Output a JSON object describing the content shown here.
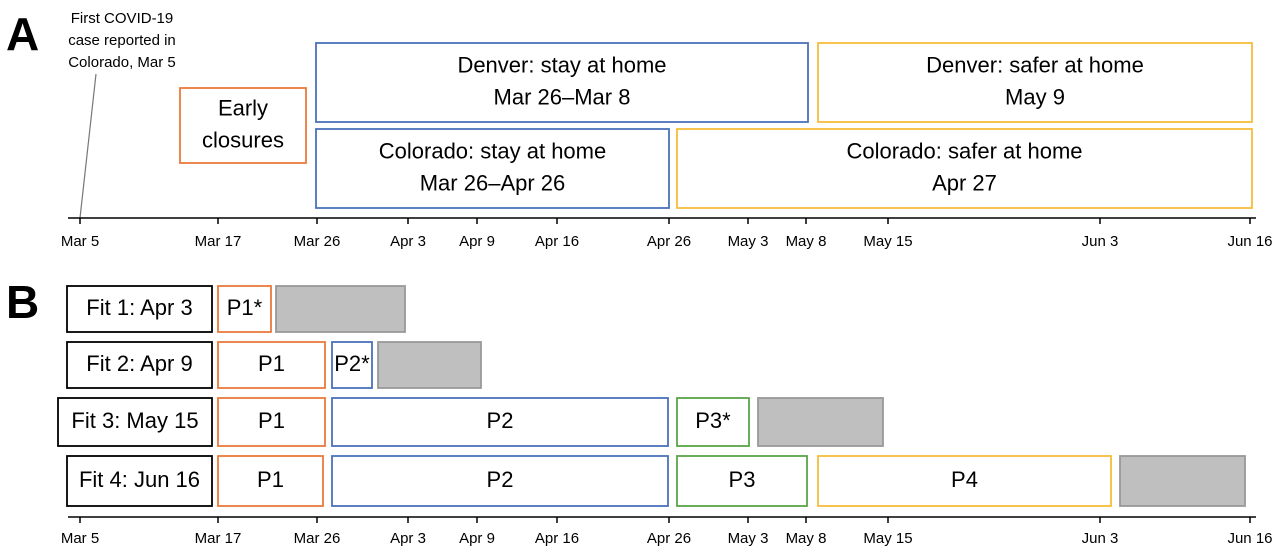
{
  "panel_a": {
    "label": "A",
    "annotation": [
      "First COVID-19",
      "case reported in",
      "Colorado, Mar 5"
    ],
    "boxes": [
      {
        "lines": [
          "Early",
          "closures"
        ]
      },
      {
        "lines": [
          "Denver: stay at home",
          "Mar 26–Mar 8"
        ]
      },
      {
        "lines": [
          "Denver: safer at home",
          "May 9"
        ]
      },
      {
        "lines": [
          "Colorado: stay at home",
          "Mar 26–Apr 26"
        ]
      },
      {
        "lines": [
          "Colorado: safer at home",
          "Apr 27"
        ]
      }
    ],
    "axis_ticks": [
      "Mar 5",
      "Mar 17",
      "Mar 26",
      "Apr 3",
      "Apr 9",
      "Apr 16",
      "Apr 26",
      "May 3",
      "May 8",
      "May 15",
      "Jun 3",
      "Jun 16"
    ]
  },
  "panel_b": {
    "label": "B",
    "rows": [
      {
        "label": "Fit 1: Apr 3",
        "periods": [
          "P1*"
        ]
      },
      {
        "label": "Fit 2: Apr 9",
        "periods": [
          "P1",
          "P2*"
        ]
      },
      {
        "label": "Fit 3: May 15",
        "periods": [
          "P1",
          "P2",
          "P3*"
        ]
      },
      {
        "label": "Fit 4: Jun 16",
        "periods": [
          "P1",
          "P2",
          "P3",
          "P4"
        ]
      }
    ],
    "axis_ticks": [
      "Mar 5",
      "Mar 17",
      "Mar 26",
      "Apr 3",
      "Apr 9",
      "Apr 16",
      "Apr 26",
      "May 3",
      "May 8",
      "May 15",
      "Jun 3",
      "Jun 16"
    ]
  }
}
